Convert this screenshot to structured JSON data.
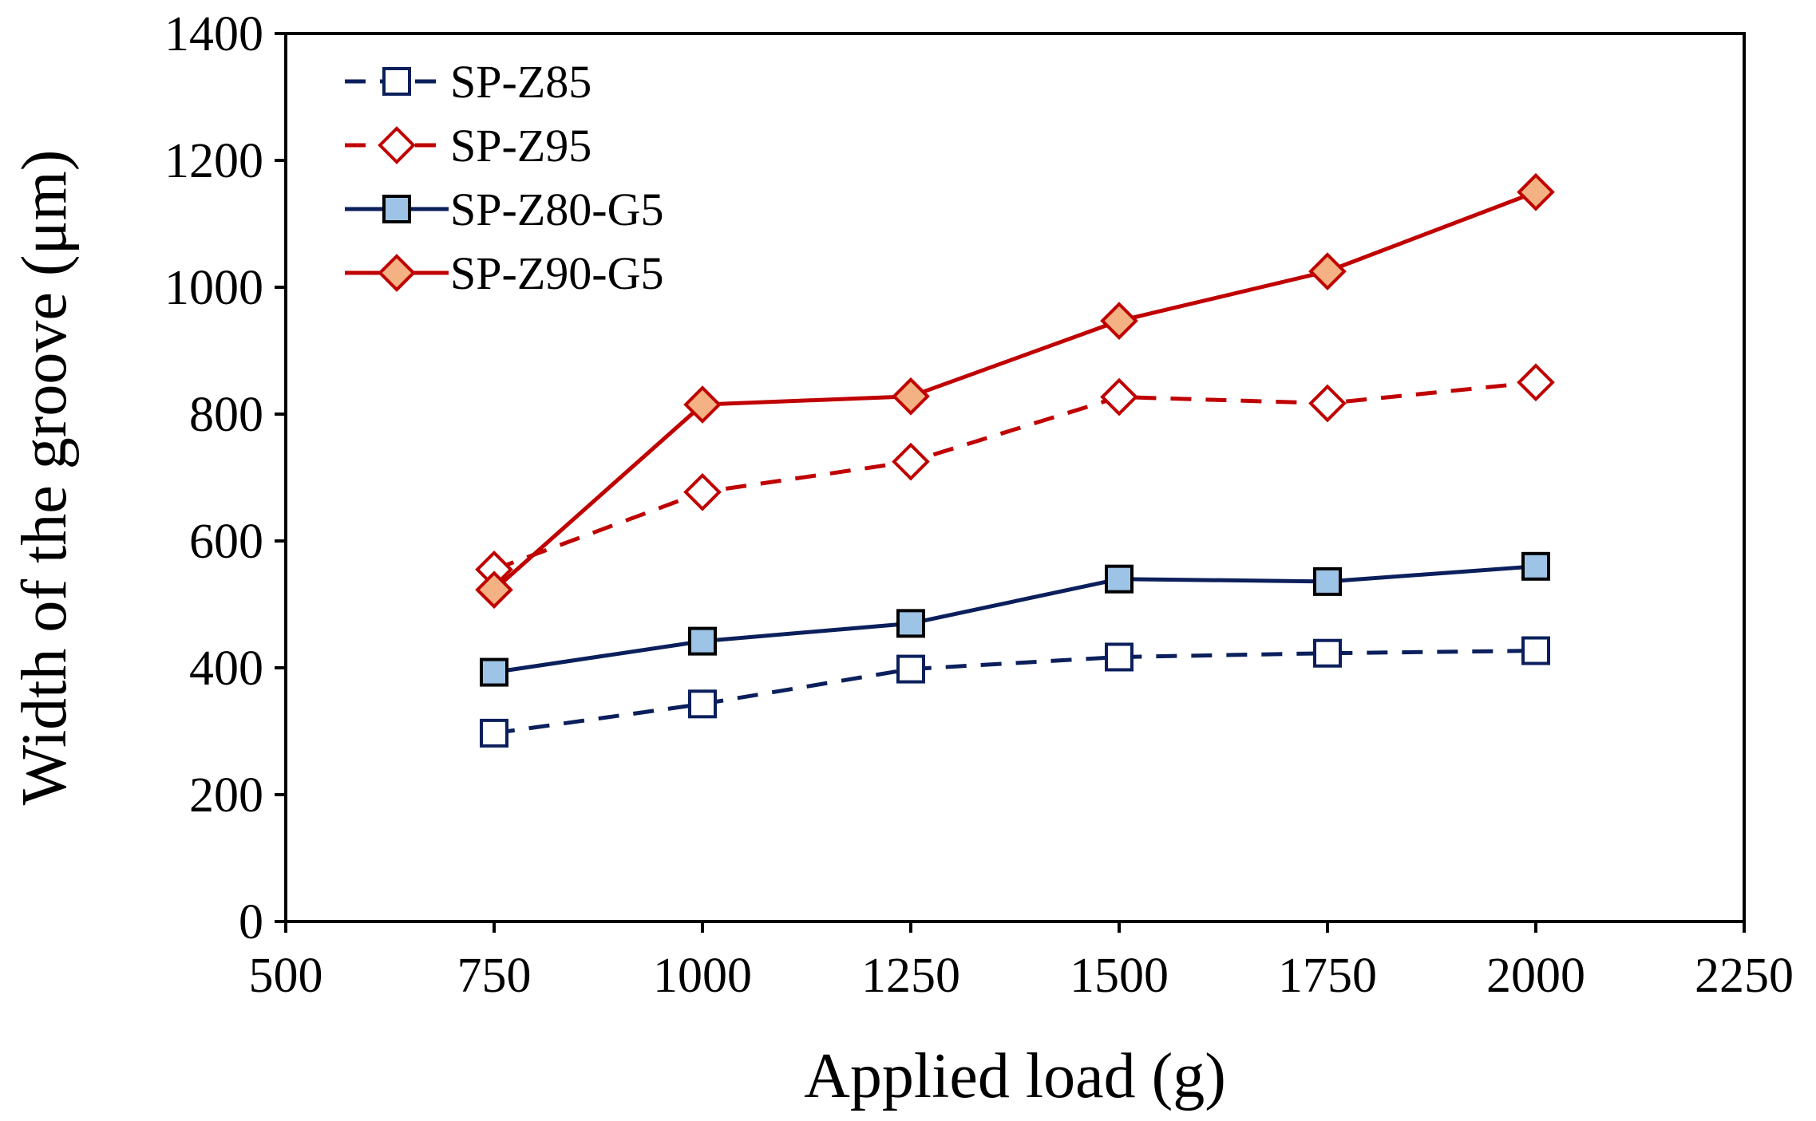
{
  "chart_data": {
    "type": "line",
    "title": "",
    "xlabel": "Applied load (g)",
    "ylabel": "Width of the groove  (μm)",
    "xlim": [
      500,
      2250
    ],
    "ylim": [
      0,
      1400
    ],
    "xticks": [
      500,
      750,
      1000,
      1250,
      1500,
      1750,
      2000,
      2250
    ],
    "yticks": [
      0,
      200,
      400,
      600,
      800,
      1000,
      1200,
      1400
    ],
    "grid": false,
    "legend_position": "top-left",
    "series": [
      {
        "name": "SP-Z85",
        "color": "#0b1f5c",
        "dash": "dashed",
        "marker": "square",
        "marker_fill": "#ffffff",
        "x": [
          750,
          1000,
          1250,
          1500,
          1750,
          2000
        ],
        "values": [
          297,
          343,
          398,
          417,
          423,
          427
        ]
      },
      {
        "name": "SP-Z95",
        "color": "#c00000",
        "dash": "dashed",
        "marker": "diamond",
        "marker_fill": "#ffffff",
        "x": [
          750,
          1000,
          1250,
          1500,
          1750,
          2000
        ],
        "values": [
          555,
          677,
          725,
          827,
          817,
          850
        ]
      },
      {
        "name": "SP-Z80-G5",
        "color": "#0b1f5c",
        "dash": "solid",
        "marker": "square",
        "marker_fill": "#9dc3e6",
        "marker_stroke": "#000000",
        "x": [
          750,
          1000,
          1250,
          1500,
          1750,
          2000
        ],
        "values": [
          393,
          442,
          470,
          540,
          536,
          560
        ]
      },
      {
        "name": "SP-Z90-G5",
        "color": "#c00000",
        "dash": "solid",
        "marker": "diamond",
        "marker_fill": "#f4b183",
        "marker_stroke": "#c00000",
        "x": [
          750,
          1000,
          1250,
          1500,
          1750,
          2000
        ],
        "values": [
          523,
          815,
          828,
          947,
          1025,
          1150
        ]
      }
    ]
  }
}
